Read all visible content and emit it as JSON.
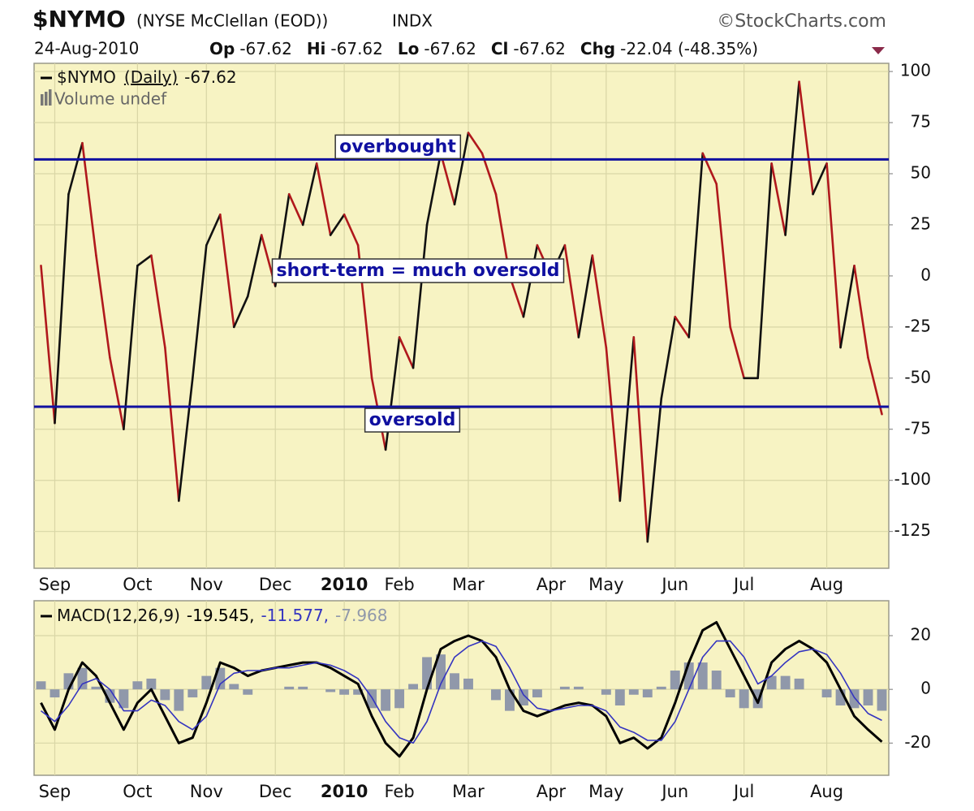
{
  "header": {
    "symbol": "$NYMO",
    "name": "(NYSE McClellan (EOD))",
    "exchange": "INDX",
    "source": "©StockCharts.com",
    "date": "24-Aug-2010",
    "quote": [
      {
        "label": "Op",
        "value": -67.62
      },
      {
        "label": "Hi",
        "value": -67.62
      },
      {
        "label": "Lo",
        "value": -67.62
      },
      {
        "label": "Cl",
        "value": -67.62
      }
    ],
    "change_label": "Chg",
    "change": "-22.04 (-48.35%)"
  },
  "chart_data": [
    {
      "type": "line",
      "categories": [
        null,
        "Sep",
        null,
        null,
        null,
        null,
        null,
        "Oct",
        null,
        null,
        null,
        null,
        "Nov",
        null,
        null,
        null,
        null,
        "Dec",
        null,
        null,
        null,
        null,
        "2010",
        null,
        null,
        null,
        "Feb",
        null,
        null,
        null,
        null,
        "Mar",
        null,
        null,
        null,
        null,
        null,
        "Apr",
        null,
        null,
        null,
        "May",
        null,
        null,
        null,
        null,
        "Jun",
        null,
        null,
        null,
        null,
        "Jul",
        null,
        null,
        null,
        null,
        null,
        "Aug",
        null,
        null,
        null,
        null
      ],
      "series": [
        {
          "name": "$NYMO",
          "period": "(Daily)",
          "last": -67.62,
          "up_color": "#111111",
          "down_color": "#b0181c",
          "values": [
            5,
            -72,
            40,
            65,
            10,
            -40,
            -75,
            5,
            10,
            -35,
            -110,
            -50,
            15,
            30,
            -25,
            -10,
            20,
            -5,
            40,
            25,
            55,
            20,
            30,
            15,
            -50,
            -85,
            -30,
            -45,
            25,
            60,
            35,
            70,
            60,
            40,
            0,
            -20,
            15,
            0,
            15,
            -30,
            10,
            -35,
            -110,
            -30,
            -130,
            -60,
            -20,
            -30,
            60,
            45,
            -25,
            -50,
            -50,
            55,
            20,
            95,
            40,
            55,
            -35,
            5,
            -40,
            -67.62
          ]
        }
      ],
      "note": "Volume undef",
      "hlines": [
        {
          "label": "overbought",
          "value": 57
        },
        {
          "label": "oversold",
          "value": -64
        }
      ],
      "hline_color": "#1010a0",
      "annotations": [
        "short-term = much oversold"
      ],
      "ylim": [
        -143,
        104
      ],
      "yticks": [
        100,
        75,
        50,
        25,
        0,
        -25,
        -50,
        -75,
        -100,
        -125
      ],
      "grid": true
    },
    {
      "type": "line",
      "categories": [
        null,
        "Sep",
        null,
        null,
        null,
        null,
        null,
        "Oct",
        null,
        null,
        null,
        null,
        "Nov",
        null,
        null,
        null,
        null,
        "Dec",
        null,
        null,
        null,
        null,
        "2010",
        null,
        null,
        null,
        "Feb",
        null,
        null,
        null,
        null,
        "Mar",
        null,
        null,
        null,
        null,
        null,
        "Apr",
        null,
        null,
        null,
        "May",
        null,
        null,
        null,
        null,
        "Jun",
        null,
        null,
        null,
        null,
        "Jul",
        null,
        null,
        null,
        null,
        null,
        "Aug",
        null,
        null,
        null,
        null
      ],
      "legend_label": "MACD(12,26,9)",
      "legend_values": [
        "-19.545,",
        "-11.577,",
        "-7.968"
      ],
      "series": [
        {
          "name": "MACD(12,26,9)",
          "kind": "line",
          "color": "#000000",
          "width": 3,
          "values": [
            -5,
            -15,
            0,
            10,
            5,
            -5,
            -15,
            -5,
            0,
            -10,
            -20,
            -18,
            -5,
            10,
            8,
            5,
            7,
            8,
            9,
            10,
            10,
            8,
            5,
            2,
            -10,
            -20,
            -25,
            -18,
            0,
            15,
            18,
            20,
            18,
            12,
            0,
            -8,
            -10,
            -8,
            -6,
            -5,
            -6,
            -10,
            -20,
            -18,
            -22,
            -18,
            -5,
            10,
            22,
            25,
            15,
            5,
            -5,
            10,
            15,
            18,
            15,
            10,
            0,
            -10,
            -15,
            -19.545
          ]
        },
        {
          "kind": "line",
          "color": "#3434c0",
          "width": 1.6,
          "values": [
            -8,
            -12,
            -6,
            2,
            4,
            0,
            -8,
            -8,
            -4,
            -6,
            -12,
            -15,
            -10,
            2,
            6,
            7,
            7,
            8,
            8,
            9,
            10,
            9,
            7,
            4,
            -3,
            -12,
            -18,
            -20,
            -12,
            2,
            12,
            16,
            18,
            16,
            8,
            -2,
            -7,
            -8,
            -7,
            -6,
            -6,
            -8,
            -14,
            -16,
            -19,
            -19,
            -12,
            0,
            12,
            18,
            18,
            12,
            2,
            5,
            10,
            14,
            15,
            13,
            6,
            -3,
            -9,
            -11.577
          ]
        },
        {
          "kind": "bar",
          "color": "#9098aa",
          "values": [
            3,
            -3,
            6,
            8,
            1,
            -5,
            -7,
            3,
            4,
            -4,
            -8,
            -3,
            5,
            8,
            2,
            -2,
            0,
            0,
            1,
            1,
            0,
            -1,
            -2,
            -2,
            -7,
            -8,
            -7,
            2,
            12,
            13,
            6,
            4,
            0,
            -4,
            -8,
            -6,
            -3,
            0,
            1,
            1,
            0,
            -2,
            -6,
            -2,
            -3,
            1,
            7,
            10,
            10,
            7,
            -3,
            -7,
            -7,
            5,
            5,
            4,
            0,
            -3,
            -6,
            -7,
            -6,
            -7.968
          ]
        }
      ],
      "ylim": [
        -32,
        33
      ],
      "yticks": [
        20,
        0,
        -20
      ],
      "grid": true
    }
  ]
}
